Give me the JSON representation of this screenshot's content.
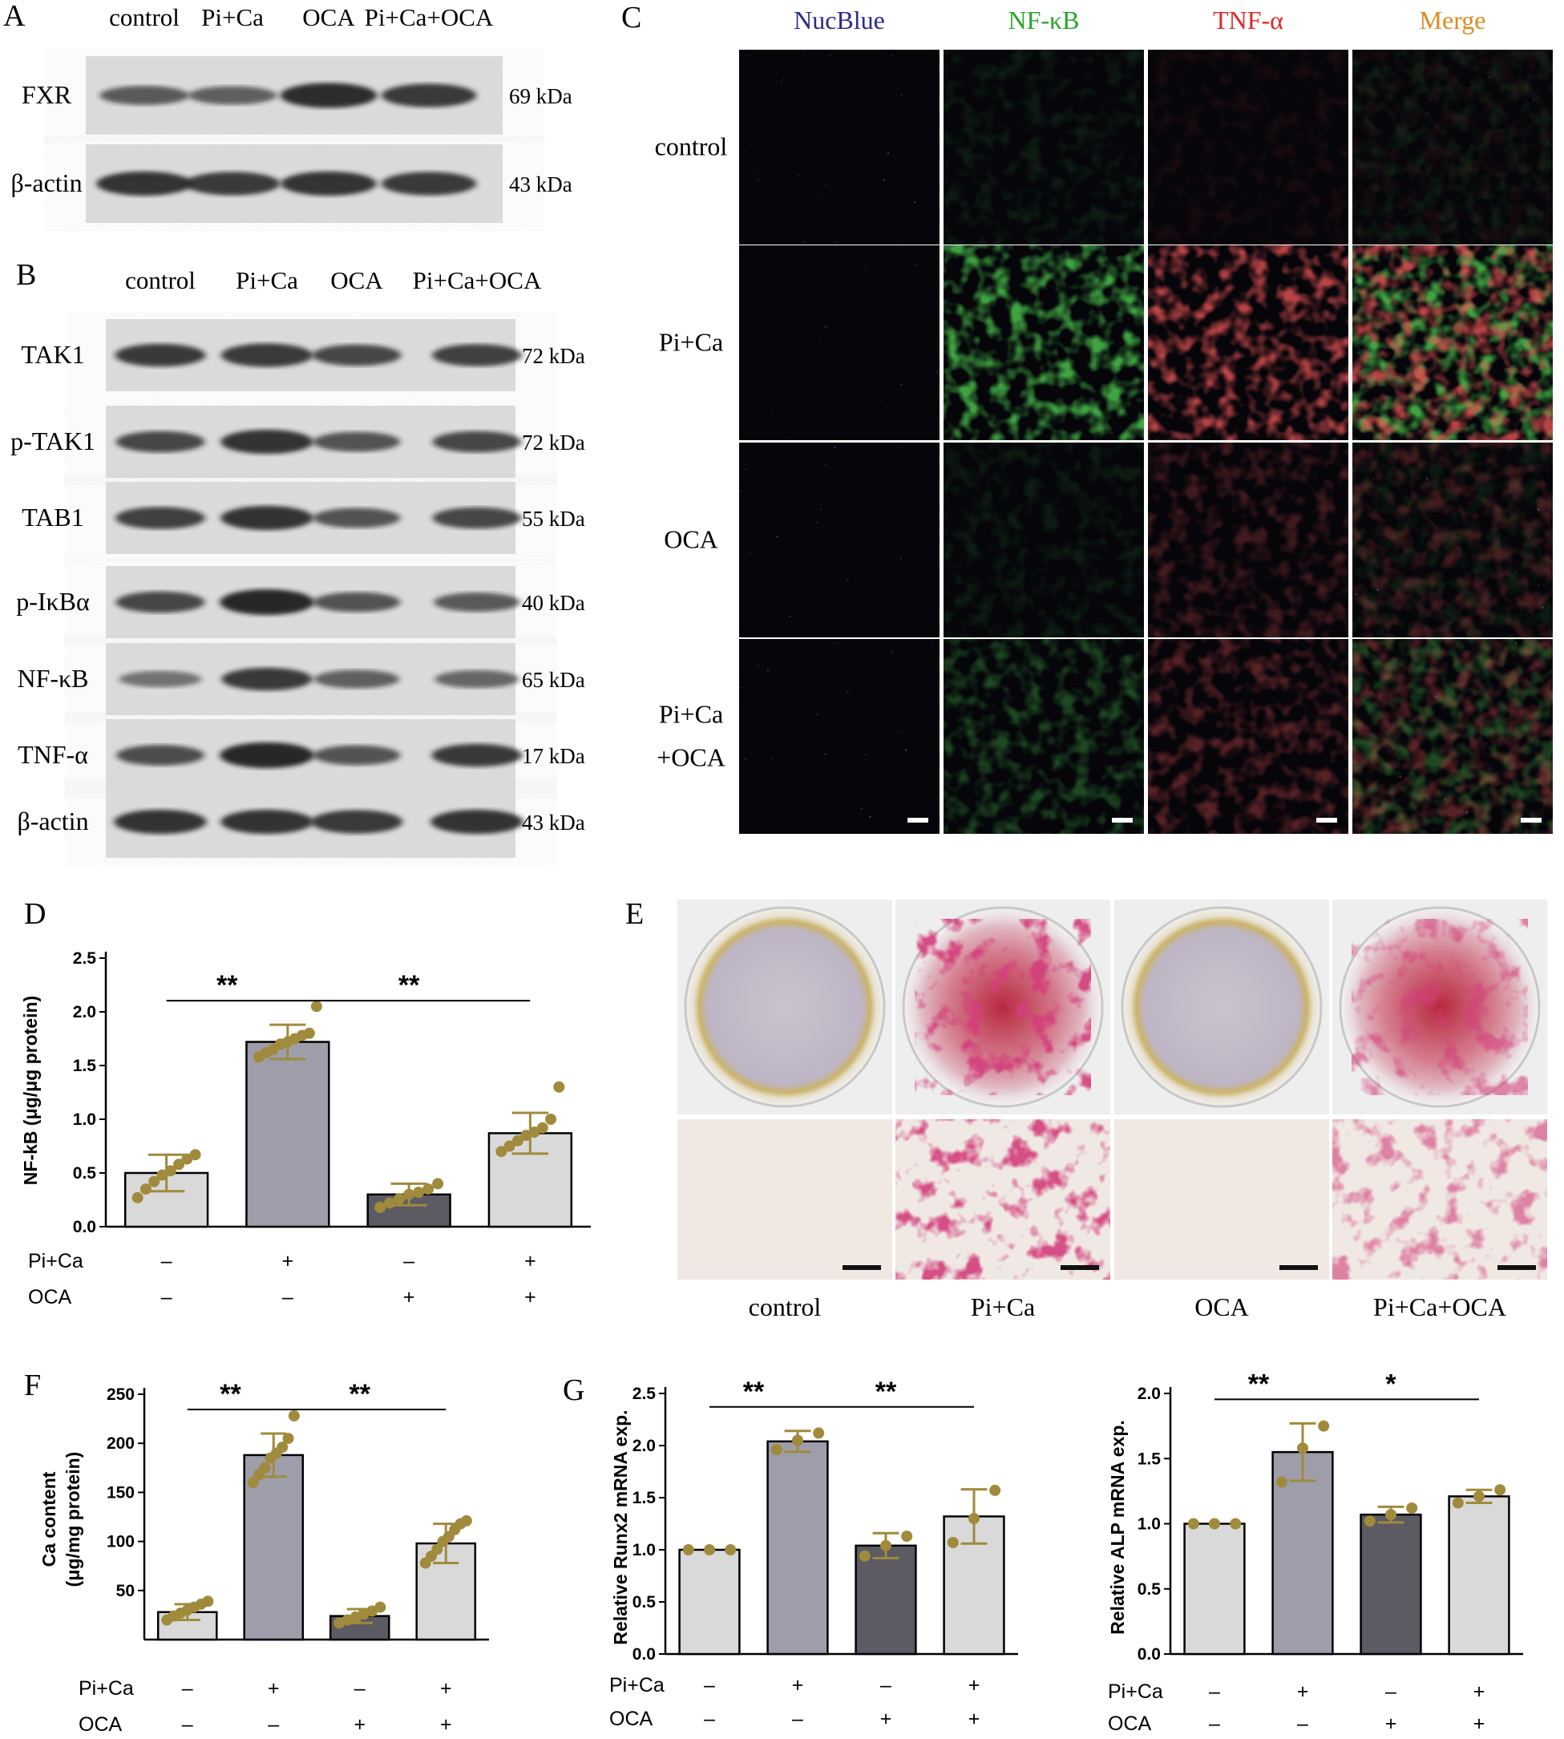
{
  "panels": {
    "A": {
      "letter": "A",
      "lanes": [
        "control",
        "Pi+Ca",
        "OCA",
        "Pi+Ca+OCA"
      ],
      "rows": [
        {
          "name": "FXR",
          "kda": "69 kDa",
          "bands": [
            0.55,
            0.5,
            0.95,
            0.85
          ]
        },
        {
          "name": "β-actin",
          "kda": "43 kDa",
          "bands": [
            0.9,
            0.85,
            0.9,
            0.85
          ]
        }
      ]
    },
    "B": {
      "letter": "B",
      "lanes": [
        "control",
        "Pi+Ca",
        "OCA",
        "Pi+Ca+OCA"
      ],
      "rows": [
        {
          "name": "TAK1",
          "kda": "72 kDa",
          "bands": [
            0.8,
            0.85,
            0.7,
            0.75
          ]
        },
        {
          "name": "p-TAK1",
          "kda": "72 kDa",
          "bands": [
            0.7,
            0.9,
            0.6,
            0.7
          ]
        },
        {
          "name": "TAB1",
          "kda": "55 kDa",
          "bands": [
            0.75,
            0.9,
            0.6,
            0.7
          ]
        },
        {
          "name": "p-IκBα",
          "kda": "40 kDa",
          "bands": [
            0.7,
            1.0,
            0.6,
            0.55
          ]
        },
        {
          "name": "NF-κB",
          "kda": "65 kDa",
          "bands": [
            0.35,
            0.8,
            0.5,
            0.45
          ]
        },
        {
          "name": "TNF-α",
          "kda": "17 kDa",
          "bands": [
            0.65,
            1.0,
            0.6,
            0.8
          ]
        },
        {
          "name": "β-actin",
          "kda": "43 kDa",
          "bands": [
            0.9,
            0.9,
            0.85,
            0.9
          ]
        }
      ]
    },
    "C": {
      "letter": "C",
      "channels": [
        {
          "name": "NucBlue",
          "color": "#2b2b8c"
        },
        {
          "name": "NF-κB",
          "color": "#2aa52a"
        },
        {
          "name": "TNF-α",
          "color": "#e02a2a"
        },
        {
          "name": "Merge",
          "color": "#e08a20"
        }
      ],
      "rows": [
        "control",
        "Pi+Ca",
        "OCA",
        "Pi+Ca\n+OCA"
      ],
      "intensity": [
        [
          0.1,
          0.08
        ],
        [
          0.7,
          0.75
        ],
        [
          0.1,
          0.25
        ],
        [
          0.3,
          0.35
        ]
      ]
    },
    "D": {
      "letter": "D"
    },
    "E": {
      "letter": "E",
      "labels": [
        "control",
        "Pi+Ca",
        "OCA",
        "Pi+Ca+OCA"
      ],
      "stain": [
        0.0,
        0.9,
        0.0,
        0.6
      ]
    },
    "F": {
      "letter": "F"
    },
    "G": {
      "letter": "G"
    }
  },
  "conditions": {
    "row1_label": "Pi+Ca",
    "row2_label": "OCA",
    "row1": [
      "–",
      "+",
      "–",
      "+"
    ],
    "row2": [
      "–",
      "–",
      "+",
      "+"
    ]
  },
  "colors": {
    "bar_light": "#d9d9d9",
    "bar_mid": "#9e9eaa",
    "bar_dark": "#5c5b64",
    "dot": "#a08a3c"
  },
  "chart_data": [
    {
      "panel": "D",
      "type": "bar",
      "categories": [
        "Pi+Ca –, OCA –",
        "Pi+Ca +, OCA –",
        "Pi+Ca –, OCA +",
        "Pi+Ca +, OCA +"
      ],
      "values": [
        0.5,
        1.72,
        0.3,
        0.87
      ],
      "errors": [
        0.17,
        0.16,
        0.1,
        0.19
      ],
      "points": [
        [
          0.27,
          0.35,
          0.42,
          0.48,
          0.52,
          0.58,
          0.63,
          0.67
        ],
        [
          1.58,
          1.62,
          1.65,
          1.7,
          1.72,
          1.75,
          1.78,
          1.8,
          2.05
        ],
        [
          0.18,
          0.22,
          0.26,
          0.3,
          0.32,
          0.35,
          0.4
        ],
        [
          0.7,
          0.75,
          0.8,
          0.85,
          0.88,
          0.92,
          1.0,
          1.3
        ]
      ],
      "ylabel": "NF-kB (μg/μg protein)",
      "yticks": [
        0.0,
        0.5,
        1.0,
        1.5,
        2.0,
        2.5
      ],
      "ylim": [
        0,
        2.5
      ],
      "significance": [
        {
          "from": 0,
          "to": 1,
          "label": "**"
        },
        {
          "from": 1,
          "to": 3,
          "label": "**"
        }
      ]
    },
    {
      "panel": "F",
      "type": "bar",
      "categories": [
        "Pi+Ca –, OCA –",
        "Pi+Ca +, OCA –",
        "Pi+Ca –, OCA +",
        "Pi+Ca +, OCA +"
      ],
      "values": [
        28,
        188,
        24,
        98
      ],
      "errors": [
        8,
        22,
        7,
        20
      ],
      "points": [
        [
          20,
          24,
          27,
          30,
          33,
          36,
          39
        ],
        [
          160,
          168,
          175,
          185,
          190,
          196,
          205,
          228
        ],
        [
          17,
          20,
          23,
          26,
          29,
          33
        ],
        [
          78,
          85,
          92,
          100,
          105,
          112,
          118,
          121
        ]
      ],
      "ylabel": "Ca content\n(μg/mg protein)",
      "yticks": [
        50,
        100,
        150,
        200,
        250
      ],
      "ylim": [
        0,
        250
      ],
      "significance": [
        {
          "from": 0,
          "to": 1,
          "label": "**"
        },
        {
          "from": 1,
          "to": 3,
          "label": "**"
        }
      ]
    },
    {
      "panel": "G",
      "type": "bar",
      "categories": [
        "Pi+Ca –, OCA –",
        "Pi+Ca +, OCA –",
        "Pi+Ca –, OCA +",
        "Pi+Ca +, OCA +"
      ],
      "values": [
        1.0,
        2.04,
        1.04,
        1.32
      ],
      "errors": [
        0.0,
        0.1,
        0.12,
        0.26
      ],
      "points": [
        [
          1.0,
          1.0,
          1.0
        ],
        [
          1.96,
          2.05,
          2.12
        ],
        [
          0.94,
          1.04,
          1.13
        ],
        [
          1.07,
          1.3,
          1.57
        ]
      ],
      "ylabel": "Relative Runx2 mRNA exp.",
      "yticks": [
        0.0,
        0.5,
        1.0,
        1.5,
        2.0,
        2.5
      ],
      "ylim": [
        0,
        2.5
      ],
      "significance": [
        {
          "from": 0,
          "to": 1,
          "label": "**"
        },
        {
          "from": 1,
          "to": 3,
          "label": "**"
        }
      ]
    },
    {
      "panel": "G",
      "type": "bar",
      "categories": [
        "Pi+Ca –, OCA –",
        "Pi+Ca +, OCA –",
        "Pi+Ca –, OCA +",
        "Pi+Ca +, OCA +"
      ],
      "values": [
        1.0,
        1.55,
        1.07,
        1.21
      ],
      "errors": [
        0.0,
        0.22,
        0.06,
        0.05
      ],
      "points": [
        [
          1.0,
          1.0,
          1.0
        ],
        [
          1.32,
          1.58,
          1.75
        ],
        [
          1.02,
          1.07,
          1.12
        ],
        [
          1.16,
          1.21,
          1.26
        ]
      ],
      "ylabel": "Relative ALP mRNA exp.",
      "yticks": [
        0.0,
        0.5,
        1.0,
        1.5,
        2.0
      ],
      "ylim": [
        0,
        2.0
      ],
      "significance": [
        {
          "from": 0,
          "to": 1,
          "label": "**"
        },
        {
          "from": 1,
          "to": 3,
          "label": "*"
        }
      ]
    }
  ]
}
